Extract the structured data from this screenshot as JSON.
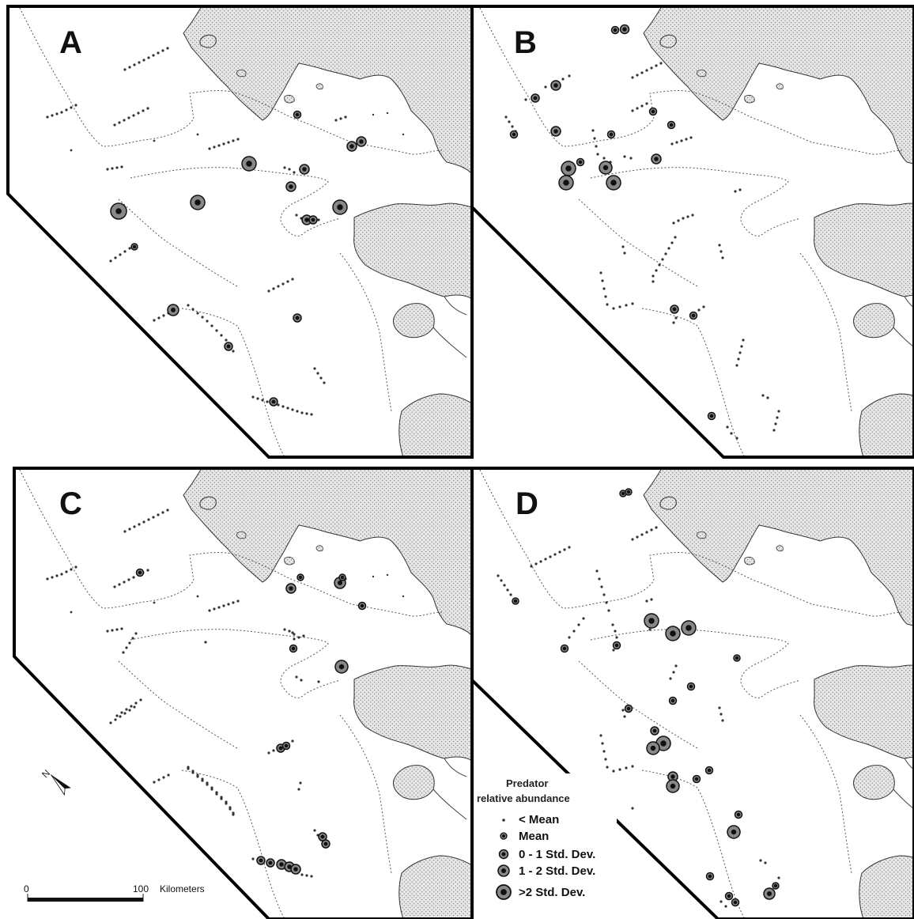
{
  "panels": [
    {
      "label": "A"
    },
    {
      "label": "B"
    },
    {
      "label": "C"
    },
    {
      "label": "D"
    }
  ],
  "legend": {
    "title_line1": "Predator",
    "title_line2": "relative abundance",
    "classes": [
      {
        "label": "< Mean",
        "symbol": "dot"
      },
      {
        "label": "Mean",
        "symbol": "small"
      },
      {
        "label": "0 - 1 Std. Dev.",
        "symbol": "medium"
      },
      {
        "label": "1 - 2 Std. Dev.",
        "symbol": "large"
      },
      {
        "label": ">2 Std. Dev.",
        "symbol": "xlarge"
      }
    ]
  },
  "scale_bar": {
    "start_label": "0",
    "end_label": "100",
    "unit": "Kilometers"
  },
  "north_arrow": {
    "label": "N"
  },
  "colors": {
    "land_fill": "#e4e4e4",
    "symbol_fill": "#888888",
    "symbol_center": "#111111",
    "frame": "#000000"
  }
}
